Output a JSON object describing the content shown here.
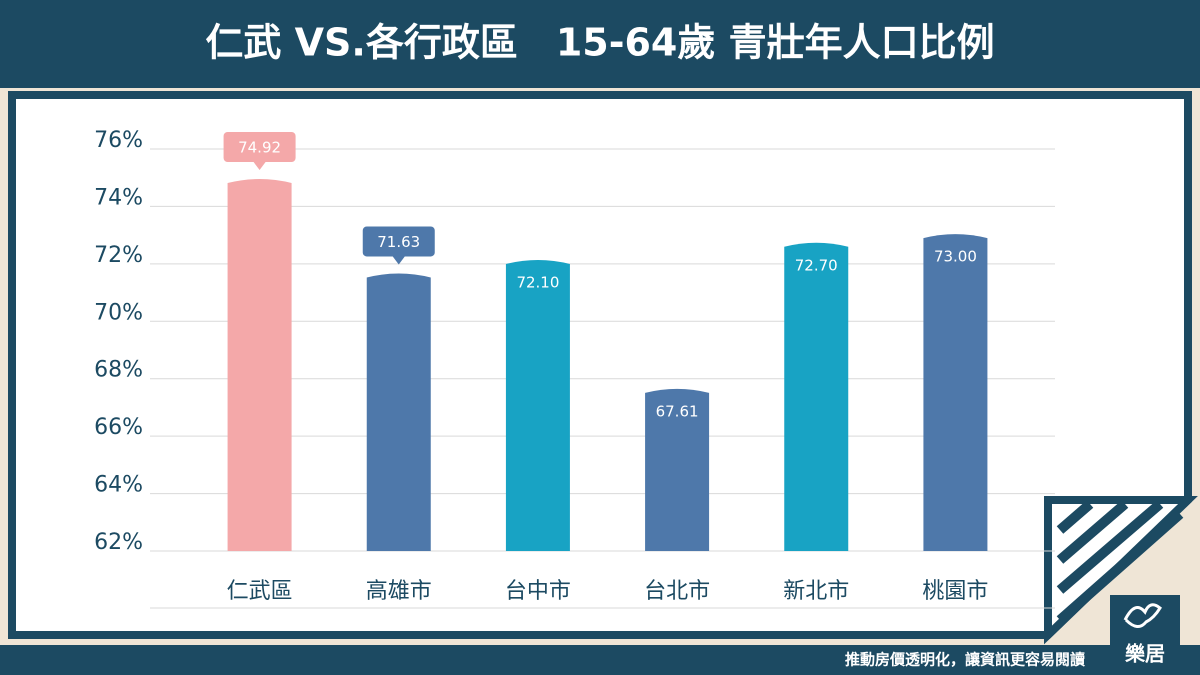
{
  "chart_data": {
    "type": "bar",
    "title": "仁武 VS.各行政區　15-64歲 青壯年人口比例",
    "categories": [
      "仁武區",
      "高雄市",
      "台中市",
      "台北市",
      "新北市",
      "桃園市"
    ],
    "values": [
      74.92,
      71.63,
      72.1,
      67.61,
      72.7,
      73.0
    ],
    "value_labels": [
      "74.92",
      "71.63",
      "72.10",
      "67.61",
      "72.70",
      "73.00"
    ],
    "colors": [
      "#f4a8a9",
      "#4e78aa",
      "#18a3c4",
      "#4e78aa",
      "#18a3c4",
      "#4e78aa"
    ],
    "ylim": [
      62,
      76
    ],
    "yticks": [
      {
        "value": 62,
        "label": "62%"
      },
      {
        "value": 64,
        "label": "64%"
      },
      {
        "value": 66,
        "label": "66%"
      },
      {
        "value": 68,
        "label": "68%"
      },
      {
        "value": 70,
        "label": "70%"
      },
      {
        "value": 72,
        "label": "72%"
      },
      {
        "value": 74,
        "label": "74%"
      },
      {
        "value": 76,
        "label": "76%"
      }
    ],
    "grid": true
  },
  "footer": {
    "slogan": "推動房價透明化，讓資訊更容易閱讀",
    "logo": "樂居"
  }
}
